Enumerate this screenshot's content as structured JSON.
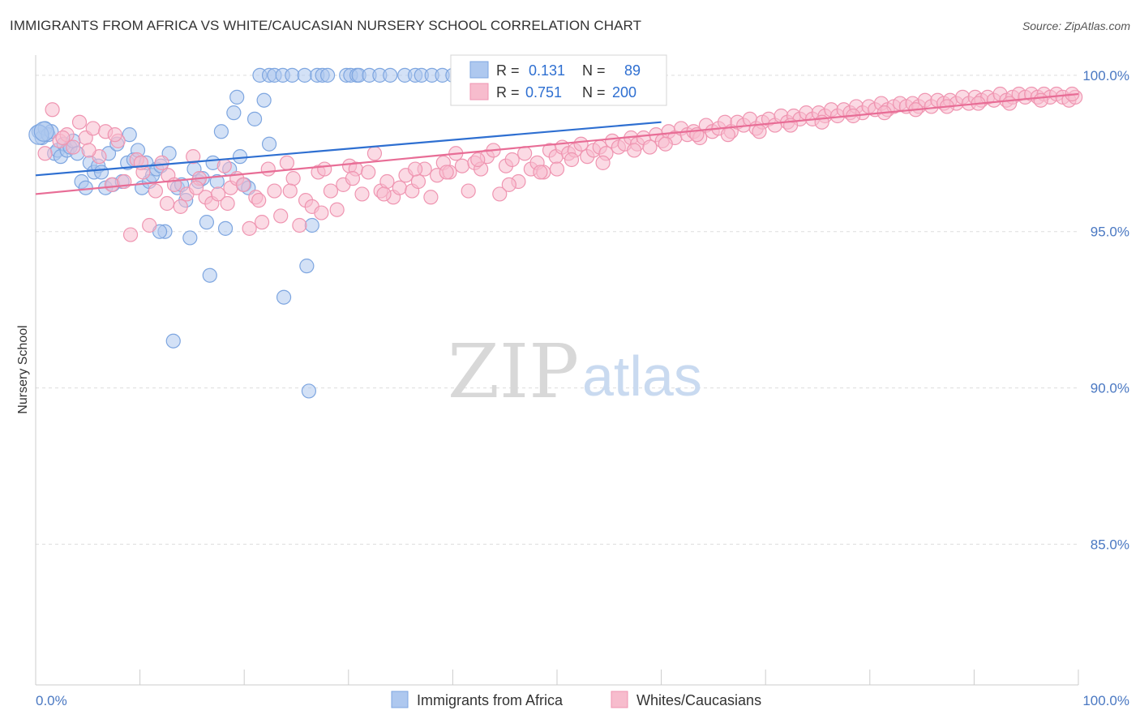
{
  "title": "IMMIGRANTS FROM AFRICA VS WHITE/CAUCASIAN NURSERY SCHOOL CORRELATION CHART",
  "source": "Source: ZipAtlas.com",
  "watermark": {
    "zip": "ZIP",
    "atlas": "atlas"
  },
  "legend_box": {
    "r_label": "R =",
    "n_label": "N =",
    "rows": [
      {
        "r": "0.131",
        "n": "89"
      },
      {
        "r": "0.751",
        "n": "200"
      }
    ]
  },
  "colors": {
    "blue_fill": "#aec8ef",
    "blue_stroke": "#7ea6e0",
    "blue_line": "#2e6fd1",
    "pink_fill": "#f7bccd",
    "pink_stroke": "#ef95b1",
    "pink_line": "#e86d96",
    "tick_blue": "#4a78c2",
    "value_blue": "#2e6fd1",
    "grid": "#dddddd"
  },
  "chart_data": {
    "type": "scatter",
    "title": "IMMIGRANTS FROM AFRICA VS WHITE/CAUCASIAN NURSERY SCHOOL CORRELATION CHART",
    "xlabel": "",
    "ylabel": "Nursery School",
    "xlim": [
      0,
      100
    ],
    "ylim": [
      80.5,
      100.8
    ],
    "x_tick_labels": [
      "0.0%",
      "100.0%"
    ],
    "y_ticks": [
      85,
      90,
      95,
      100
    ],
    "y_tick_labels": [
      "85.0%",
      "90.0%",
      "95.0%",
      "100.0%"
    ],
    "grid": true,
    "legend_position": "bottom",
    "series": [
      {
        "name": "Immigrants from Africa",
        "color": "#aec8ef",
        "r": 0.131,
        "n": 89,
        "trend": {
          "x": [
            0,
            60
          ],
          "y": [
            96.8,
            98.5
          ]
        },
        "points": [
          [
            0.3,
            98.2
          ],
          [
            0.6,
            98.0
          ],
          [
            0.9,
            98.3
          ],
          [
            1.2,
            98.1
          ],
          [
            1.5,
            98.2
          ],
          [
            1.8,
            97.5
          ],
          [
            2.1,
            97.6
          ],
          [
            2.4,
            97.4
          ],
          [
            2.7,
            97.8
          ],
          [
            3.0,
            97.6
          ],
          [
            3.3,
            97.7
          ],
          [
            3.6,
            97.9
          ],
          [
            4.0,
            97.5
          ],
          [
            4.4,
            96.6
          ],
          [
            4.8,
            96.4
          ],
          [
            5.2,
            97.2
          ],
          [
            5.6,
            96.9
          ],
          [
            6.0,
            97.1
          ],
          [
            6.3,
            96.9
          ],
          [
            6.7,
            96.4
          ],
          [
            7.0,
            97.5
          ],
          [
            7.4,
            96.5
          ],
          [
            7.8,
            97.8
          ],
          [
            8.3,
            96.6
          ],
          [
            8.8,
            97.2
          ],
          [
            9.0,
            98.1
          ],
          [
            9.4,
            97.3
          ],
          [
            9.8,
            97.6
          ],
          [
            10.2,
            96.4
          ],
          [
            10.6,
            97.2
          ],
          [
            10.9,
            96.6
          ],
          [
            11.2,
            96.8
          ],
          [
            11.6,
            97.0
          ],
          [
            12.0,
            97.1
          ],
          [
            12.4,
            95.0
          ],
          [
            12.8,
            97.5
          ],
          [
            13.2,
            91.5
          ],
          [
            13.6,
            96.4
          ],
          [
            14.0,
            96.5
          ],
          [
            14.4,
            96.0
          ],
          [
            14.8,
            94.8
          ],
          [
            15.2,
            97.0
          ],
          [
            15.6,
            96.6
          ],
          [
            16.0,
            96.7
          ],
          [
            16.4,
            95.3
          ],
          [
            16.7,
            93.6
          ],
          [
            17.0,
            97.2
          ],
          [
            17.4,
            96.6
          ],
          [
            17.8,
            98.2
          ],
          [
            18.2,
            95.1
          ],
          [
            18.6,
            97.0
          ],
          [
            19.0,
            98.8
          ],
          [
            19.3,
            99.3
          ],
          [
            19.6,
            97.4
          ],
          [
            20.0,
            96.5
          ],
          [
            20.4,
            96.4
          ],
          [
            21.0,
            98.6
          ],
          [
            21.5,
            100.0
          ],
          [
            21.9,
            99.2
          ],
          [
            22.4,
            100.0
          ],
          [
            22.4,
            97.8
          ],
          [
            22.9,
            100.0
          ],
          [
            23.7,
            100.0
          ],
          [
            24.6,
            100.0
          ],
          [
            25.8,
            100.0
          ],
          [
            27.0,
            100.0
          ],
          [
            27.5,
            100.0
          ],
          [
            28.0,
            100.0
          ],
          [
            29.8,
            100.0
          ],
          [
            30.2,
            100.0
          ],
          [
            30.8,
            100.0
          ],
          [
            31.0,
            100.0
          ],
          [
            32.0,
            100.0
          ],
          [
            33.0,
            100.0
          ],
          [
            34.0,
            100.0
          ],
          [
            35.4,
            100.0
          ],
          [
            36.4,
            100.0
          ],
          [
            37.0,
            100.0
          ],
          [
            38.0,
            100.0
          ],
          [
            39.0,
            100.0
          ],
          [
            40.0,
            100.0
          ],
          [
            41.5,
            100.0
          ],
          [
            43.0,
            100.0
          ],
          [
            45.0,
            100.0
          ],
          [
            11.9,
            95.0
          ],
          [
            23.8,
            92.9
          ],
          [
            26.0,
            93.9
          ],
          [
            26.2,
            89.9
          ],
          [
            26.5,
            95.2
          ]
        ]
      },
      {
        "name": "Whites/Caucasians",
        "color": "#f7bccd",
        "r": 0.751,
        "n": 200,
        "trend": {
          "x": [
            0,
            100
          ],
          "y": [
            96.2,
            99.4
          ]
        },
        "points": [
          [
            0.9,
            97.5
          ],
          [
            1.6,
            98.9
          ],
          [
            2.3,
            97.9
          ],
          [
            3.0,
            98.1
          ],
          [
            3.6,
            97.7
          ],
          [
            4.2,
            98.5
          ],
          [
            4.8,
            98.0
          ],
          [
            5.5,
            98.3
          ],
          [
            6.1,
            97.4
          ],
          [
            6.7,
            98.2
          ],
          [
            7.3,
            96.5
          ],
          [
            7.9,
            97.9
          ],
          [
            8.5,
            96.6
          ],
          [
            9.1,
            94.9
          ],
          [
            9.7,
            97.3
          ],
          [
            10.3,
            96.9
          ],
          [
            10.9,
            95.2
          ],
          [
            11.5,
            96.3
          ],
          [
            12.1,
            97.2
          ],
          [
            12.7,
            96.8
          ],
          [
            13.3,
            96.5
          ],
          [
            13.9,
            95.8
          ],
          [
            14.5,
            96.2
          ],
          [
            15.1,
            97.4
          ],
          [
            15.7,
            96.7
          ],
          [
            16.3,
            96.1
          ],
          [
            16.9,
            95.9
          ],
          [
            17.5,
            96.2
          ],
          [
            18.1,
            97.1
          ],
          [
            18.7,
            96.4
          ],
          [
            19.3,
            96.7
          ],
          [
            19.9,
            96.5
          ],
          [
            20.5,
            95.1
          ],
          [
            21.1,
            96.1
          ],
          [
            21.7,
            95.3
          ],
          [
            22.3,
            97.0
          ],
          [
            22.9,
            96.3
          ],
          [
            23.5,
            95.5
          ],
          [
            24.1,
            97.2
          ],
          [
            24.7,
            96.7
          ],
          [
            25.3,
            95.2
          ],
          [
            25.9,
            96.0
          ],
          [
            26.5,
            95.8
          ],
          [
            27.1,
            96.9
          ],
          [
            27.7,
            97.0
          ],
          [
            28.3,
            96.3
          ],
          [
            28.9,
            95.7
          ],
          [
            29.5,
            96.5
          ],
          [
            30.1,
            97.1
          ],
          [
            30.7,
            97.0
          ],
          [
            31.3,
            96.2
          ],
          [
            31.9,
            96.9
          ],
          [
            32.5,
            97.5
          ],
          [
            33.1,
            96.3
          ],
          [
            33.7,
            96.6
          ],
          [
            34.3,
            96.1
          ],
          [
            34.9,
            96.4
          ],
          [
            35.5,
            96.8
          ],
          [
            36.1,
            96.3
          ],
          [
            36.7,
            96.6
          ],
          [
            37.3,
            97.0
          ],
          [
            37.9,
            96.1
          ],
          [
            38.5,
            96.8
          ],
          [
            39.1,
            97.2
          ],
          [
            39.7,
            96.9
          ],
          [
            40.3,
            97.5
          ],
          [
            40.9,
            97.1
          ],
          [
            41.5,
            96.3
          ],
          [
            42.1,
            97.2
          ],
          [
            42.7,
            97.0
          ],
          [
            43.3,
            97.4
          ],
          [
            43.9,
            97.6
          ],
          [
            44.5,
            96.2
          ],
          [
            45.1,
            97.1
          ],
          [
            45.7,
            97.3
          ],
          [
            46.3,
            96.6
          ],
          [
            46.9,
            97.5
          ],
          [
            47.5,
            97.0
          ],
          [
            48.1,
            97.2
          ],
          [
            48.7,
            96.9
          ],
          [
            49.3,
            97.6
          ],
          [
            49.9,
            97.4
          ],
          [
            50.5,
            97.7
          ],
          [
            51.1,
            97.5
          ],
          [
            51.7,
            97.6
          ],
          [
            52.3,
            97.8
          ],
          [
            52.9,
            97.4
          ],
          [
            53.5,
            97.6
          ],
          [
            54.1,
            97.7
          ],
          [
            54.7,
            97.5
          ],
          [
            55.3,
            97.9
          ],
          [
            55.9,
            97.7
          ],
          [
            56.5,
            97.8
          ],
          [
            57.1,
            98.0
          ],
          [
            57.7,
            97.8
          ],
          [
            58.3,
            98.0
          ],
          [
            58.9,
            97.7
          ],
          [
            59.5,
            98.1
          ],
          [
            60.1,
            97.9
          ],
          [
            60.7,
            98.2
          ],
          [
            61.3,
            98.0
          ],
          [
            61.9,
            98.3
          ],
          [
            62.5,
            98.1
          ],
          [
            63.1,
            98.2
          ],
          [
            63.7,
            98.0
          ],
          [
            64.3,
            98.4
          ],
          [
            64.9,
            98.2
          ],
          [
            65.5,
            98.3
          ],
          [
            66.1,
            98.5
          ],
          [
            66.7,
            98.2
          ],
          [
            67.3,
            98.5
          ],
          [
            67.9,
            98.4
          ],
          [
            68.5,
            98.6
          ],
          [
            69.1,
            98.3
          ],
          [
            69.7,
            98.5
          ],
          [
            70.3,
            98.6
          ],
          [
            70.9,
            98.4
          ],
          [
            71.5,
            98.7
          ],
          [
            72.1,
            98.5
          ],
          [
            72.7,
            98.7
          ],
          [
            73.3,
            98.6
          ],
          [
            73.9,
            98.8
          ],
          [
            74.5,
            98.6
          ],
          [
            75.1,
            98.8
          ],
          [
            75.7,
            98.7
          ],
          [
            76.3,
            98.9
          ],
          [
            76.9,
            98.7
          ],
          [
            77.5,
            98.9
          ],
          [
            78.1,
            98.8
          ],
          [
            78.7,
            99.0
          ],
          [
            79.3,
            98.8
          ],
          [
            79.9,
            99.0
          ],
          [
            80.5,
            98.9
          ],
          [
            81.1,
            99.1
          ],
          [
            81.7,
            98.9
          ],
          [
            82.3,
            99.0
          ],
          [
            82.9,
            99.1
          ],
          [
            83.5,
            99.0
          ],
          [
            84.1,
            99.1
          ],
          [
            84.7,
            99.0
          ],
          [
            85.3,
            99.2
          ],
          [
            85.9,
            99.0
          ],
          [
            86.5,
            99.2
          ],
          [
            87.1,
            99.1
          ],
          [
            87.7,
            99.2
          ],
          [
            88.3,
            99.1
          ],
          [
            88.9,
            99.3
          ],
          [
            89.5,
            99.1
          ],
          [
            90.1,
            99.3
          ],
          [
            90.7,
            99.2
          ],
          [
            91.3,
            99.3
          ],
          [
            91.9,
            99.2
          ],
          [
            92.5,
            99.4
          ],
          [
            93.1,
            99.2
          ],
          [
            93.7,
            99.3
          ],
          [
            94.3,
            99.4
          ],
          [
            94.9,
            99.3
          ],
          [
            95.5,
            99.4
          ],
          [
            96.1,
            99.3
          ],
          [
            96.7,
            99.4
          ],
          [
            97.3,
            99.3
          ],
          [
            97.9,
            99.4
          ],
          [
            98.5,
            99.3
          ],
          [
            99.1,
            99.2
          ],
          [
            99.7,
            99.3
          ],
          [
            2.6,
            98.0
          ],
          [
            5.1,
            97.6
          ],
          [
            7.6,
            98.1
          ],
          [
            10.1,
            97.2
          ],
          [
            12.6,
            95.9
          ],
          [
            15.4,
            96.4
          ],
          [
            18.4,
            95.9
          ],
          [
            21.4,
            96.0
          ],
          [
            24.4,
            96.3
          ],
          [
            27.4,
            95.6
          ],
          [
            30.4,
            96.7
          ],
          [
            33.4,
            96.2
          ],
          [
            36.4,
            97.0
          ],
          [
            39.4,
            96.9
          ],
          [
            42.4,
            97.3
          ],
          [
            45.4,
            96.5
          ],
          [
            48.4,
            96.9
          ],
          [
            51.4,
            97.3
          ],
          [
            54.4,
            97.2
          ],
          [
            57.4,
            97.6
          ],
          [
            60.4,
            97.8
          ],
          [
            63.4,
            98.1
          ],
          [
            66.4,
            98.1
          ],
          [
            69.4,
            98.2
          ],
          [
            72.4,
            98.4
          ],
          [
            75.4,
            98.5
          ],
          [
            78.4,
            98.7
          ],
          [
            81.4,
            98.8
          ],
          [
            84.4,
            98.9
          ],
          [
            87.4,
            99.0
          ],
          [
            90.4,
            99.1
          ],
          [
            93.4,
            99.1
          ],
          [
            96.4,
            99.2
          ],
          [
            99.4,
            99.4
          ],
          [
            50.0,
            97.0
          ]
        ]
      }
    ]
  }
}
